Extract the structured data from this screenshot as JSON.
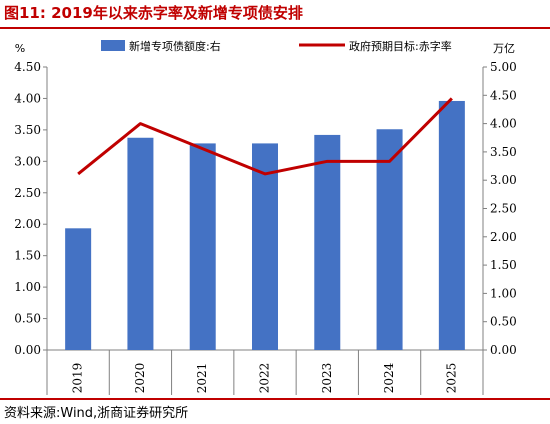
{
  "header": {
    "title": "图11:  2019年以来赤字率及新增专项债安排"
  },
  "footer": {
    "source": "资料来源:Wind,浙商证券研究所"
  },
  "colors": {
    "bar": "#4472c4",
    "line": "#c00000",
    "accent": "#c00000"
  },
  "chart_data": {
    "type": "bar",
    "categories": [
      "2019",
      "2020",
      "2021",
      "2022",
      "2023",
      "2024",
      "2025"
    ],
    "left_axis": {
      "unit": "%",
      "ylim": [
        0,
        4.5
      ],
      "ticks": [
        "0.00",
        "0.50",
        "1.00",
        "1.50",
        "2.00",
        "2.50",
        "3.00",
        "3.50",
        "4.00",
        "4.50"
      ]
    },
    "right_axis": {
      "unit": "万亿",
      "ylim": [
        0,
        5
      ],
      "ticks": [
        "0.00",
        "0.50",
        "1.00",
        "1.50",
        "2.00",
        "2.50",
        "3.00",
        "3.50",
        "4.00",
        "4.50",
        "5.00"
      ]
    },
    "series": [
      {
        "name": "新增专项债额度:右",
        "type": "bar",
        "axis": "right",
        "values": [
          2.15,
          3.75,
          3.65,
          3.65,
          3.8,
          3.9,
          4.4
        ]
      },
      {
        "name": "政府预期目标:赤字率",
        "type": "line",
        "axis": "left",
        "values": [
          2.8,
          3.6,
          3.2,
          2.8,
          3.0,
          3.0,
          4.0
        ]
      }
    ],
    "legend": "top",
    "grid": false
  }
}
